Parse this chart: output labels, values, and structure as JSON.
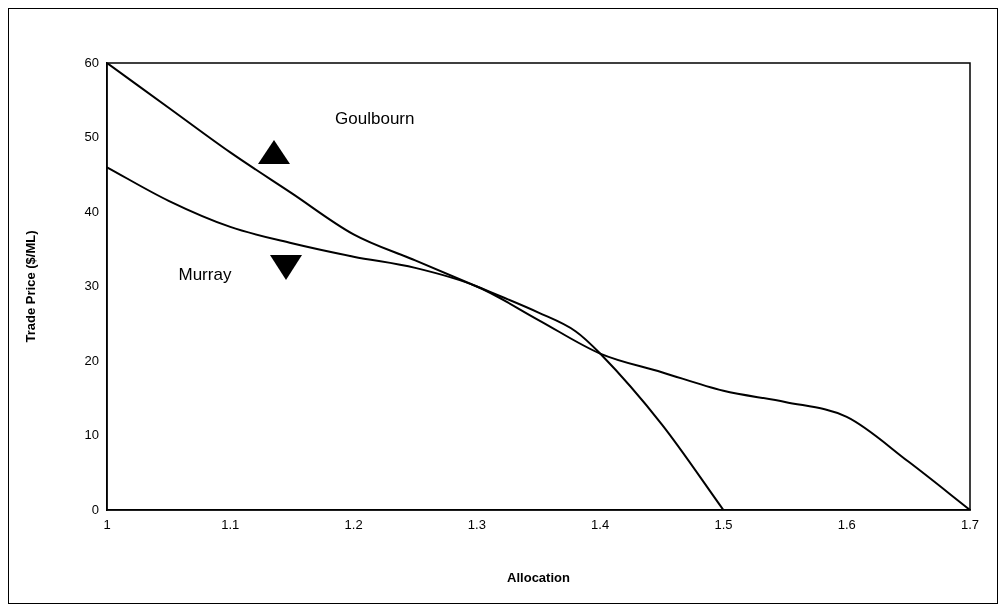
{
  "chart_data": {
    "type": "line",
    "xlabel": "Allocation",
    "ylabel": "Trade Price ($/ML)",
    "xlim": [
      1,
      1.7
    ],
    "xticks": [
      1,
      1.1,
      1.2,
      1.3,
      1.4,
      1.5,
      1.6,
      1.7
    ],
    "ylim": [
      0,
      60
    ],
    "yticks": [
      0,
      10,
      20,
      30,
      40,
      50,
      60
    ],
    "annotations": [
      "Goulbourn",
      "Murray"
    ],
    "grid": false,
    "legend": false,
    "marker": "none",
    "line_style": "solid",
    "series": [
      {
        "color": "#000000",
        "x": [
          1,
          1.05,
          1.1,
          1.15,
          1.2,
          1.25,
          1.3,
          1.35,
          1.38,
          1.4,
          1.45,
          1.5
        ],
        "values": [
          60,
          54,
          48,
          42.5,
          37,
          33.5,
          30,
          26.5,
          24,
          21,
          11.5,
          0
        ]
      },
      {
        "color": "#000000",
        "x": [
          1,
          1.05,
          1.1,
          1.15,
          1.2,
          1.25,
          1.3,
          1.35,
          1.4,
          1.45,
          1.5,
          1.55,
          1.6,
          1.65,
          1.7
        ],
        "values": [
          46,
          41.5,
          38,
          35.8,
          34,
          32.5,
          30,
          25.5,
          21,
          18.5,
          16,
          14.5,
          12.5,
          6.5,
          0
        ]
      }
    ]
  }
}
